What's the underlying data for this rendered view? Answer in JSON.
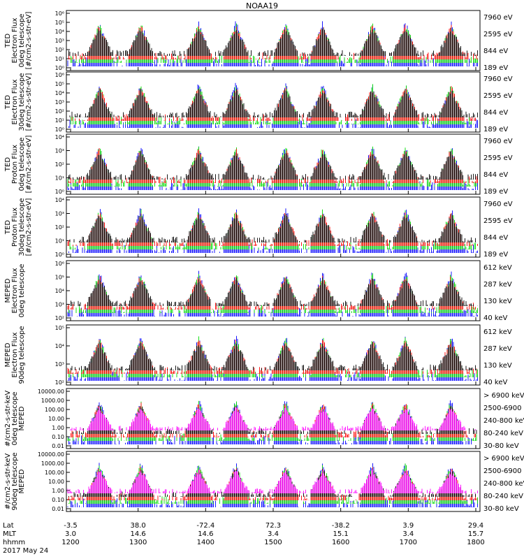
{
  "title": "NOAA19",
  "chart_data": [
    {
      "type": "scatter",
      "ylabel": [
        "TED",
        "Electron Flux",
        "0deg telescope",
        "[#/cm2-s-str-eV]"
      ],
      "ytick_labels": [
        "10⁰",
        "10¹",
        "10²",
        "10³",
        "10⁴",
        "10⁵",
        "10⁶"
      ],
      "yscale": "log",
      "ylim": [
        1,
        1000000
      ],
      "legend": [
        {
          "label": "7960 eV",
          "color": "#000000"
        },
        {
          "label": "2595 eV",
          "color": "#ff0000"
        },
        {
          "label": "844 eV",
          "color": "#00dd00"
        },
        {
          "label": "189 eV",
          "color": "#0000ff"
        }
      ]
    },
    {
      "type": "scatter",
      "ylabel": [
        "TED",
        "Electron Flux",
        "30deg telescope",
        "[#/cm2-s-str-eV]"
      ],
      "ytick_labels": [
        "10⁰",
        "10¹",
        "10²",
        "10³",
        "10⁴",
        "10⁵",
        "10⁶"
      ],
      "yscale": "log",
      "ylim": [
        1,
        1000000
      ],
      "legend": [
        {
          "label": "7960 eV",
          "color": "#000000"
        },
        {
          "label": "2595 eV",
          "color": "#ff0000"
        },
        {
          "label": "844 eV",
          "color": "#00dd00"
        },
        {
          "label": "189 eV",
          "color": "#0000ff"
        }
      ]
    },
    {
      "type": "scatter",
      "ylabel": [
        "TED",
        "Proton Flux",
        "0deg telescope",
        "[#/cm2-s-str-eV]"
      ],
      "ytick_labels": [
        "10⁰",
        "10¹",
        "10²",
        "10³",
        "10⁴"
      ],
      "yscale": "log",
      "ylim": [
        1,
        10000
      ],
      "legend": [
        {
          "label": "7960 eV",
          "color": "#000000"
        },
        {
          "label": "2595 eV",
          "color": "#ff0000"
        },
        {
          "label": "844 eV",
          "color": "#00dd00"
        },
        {
          "label": "189 eV",
          "color": "#0000ff"
        }
      ]
    },
    {
      "type": "scatter",
      "ylabel": [
        "TED",
        "Proton Flux",
        "30deg telescope",
        "[#/cm2-s-str-eV]"
      ],
      "ytick_labels": [
        "10⁰",
        "10¹",
        "10²",
        "10³",
        "10⁴"
      ],
      "yscale": "log",
      "ylim": [
        1,
        10000
      ],
      "legend": [
        {
          "label": "7960 eV",
          "color": "#000000"
        },
        {
          "label": "2595 eV",
          "color": "#ff0000"
        },
        {
          "label": "844 eV",
          "color": "#00dd00"
        },
        {
          "label": "189 eV",
          "color": "#0000ff"
        }
      ]
    },
    {
      "type": "scatter",
      "ylabel": [
        "MEPED",
        "Electron Flux",
        "0deg telescope",
        ""
      ],
      "ytick_labels": [
        "10²",
        "10³",
        "10⁴",
        "10⁵",
        "10⁶"
      ],
      "yscale": "log",
      "ylim": [
        100,
        1000000
      ],
      "legend": [
        {
          "label": "612 keV",
          "color": "#000000"
        },
        {
          "label": "287 keV",
          "color": "#ff0000"
        },
        {
          "label": "130 keV",
          "color": "#00dd00"
        },
        {
          "label": "40 keV",
          "color": "#0000ff"
        }
      ]
    },
    {
      "type": "scatter",
      "ylabel": [
        "MEPED",
        "Electron Flux",
        "90deg telescope",
        ""
      ],
      "ytick_labels": [
        "10²",
        "10³",
        "10⁴",
        "10⁵"
      ],
      "yscale": "log",
      "ylim": [
        100,
        100000
      ],
      "legend": [
        {
          "label": "612 keV",
          "color": "#000000"
        },
        {
          "label": "287 keV",
          "color": "#ff0000"
        },
        {
          "label": "130 keV",
          "color": "#00dd00"
        },
        {
          "label": "40 keV",
          "color": "#0000ff"
        }
      ]
    },
    {
      "type": "scatter",
      "ylabel": [
        "#/cm2-s-str-keV",
        "0deg telescope",
        "MEPED",
        ""
      ],
      "ytick_labels": [
        "0.01",
        "0.10",
        "1.00",
        "10.00",
        "100.00",
        "1000.00",
        "10000.00"
      ],
      "yscale": "log",
      "ylim": [
        0.01,
        10000
      ],
      "legend": [
        {
          "label": "> 6900 keV",
          "color": "#ff00ff"
        },
        {
          "label": "2500-6900",
          "color": "#000000"
        },
        {
          "label": "240-800 keV",
          "color": "#ff0000"
        },
        {
          "label": "80-240 keV",
          "color": "#00dd00"
        },
        {
          "label": "30-80 keV",
          "color": "#0000ff"
        }
      ]
    },
    {
      "type": "scatter",
      "ylabel": [
        "#/cm2-s-str-keV",
        "90deg telescope",
        "MEPED",
        ""
      ],
      "ytick_labels": [
        "0.01",
        "0.10",
        "1.00",
        "10.00",
        "100.00",
        "1000.00",
        "10000.00"
      ],
      "yscale": "log",
      "ylim": [
        0.01,
        10000
      ],
      "legend": [
        {
          "label": "> 6900 keV",
          "color": "#ff00ff"
        },
        {
          "label": "2500-6900",
          "color": "#000000"
        },
        {
          "label": "240-800 keV",
          "color": "#ff0000"
        },
        {
          "label": "80-240 keV",
          "color": "#00dd00"
        },
        {
          "label": "30-80 keV",
          "color": "#0000ff"
        }
      ]
    }
  ],
  "xaxis": {
    "row_labels": [
      "Lat",
      "MLT",
      "hhmm"
    ],
    "lat": [
      "-3.5",
      "38.0",
      "-72.4",
      "72.3",
      "-38.2",
      "3.9",
      "29.4"
    ],
    "mlt": [
      "3.0",
      "14.6",
      "14.6",
      "3.4",
      "15.1",
      "3.4",
      "15.7"
    ],
    "hhmm": [
      "1200",
      "1300",
      "1400",
      "1500",
      "1600",
      "1700",
      "1800"
    ],
    "date": "2017 May 24"
  },
  "colors": {
    "black": "#000000",
    "red": "#ff0000",
    "green": "#00dd00",
    "blue": "#0000ff",
    "magenta": "#ff00ff"
  }
}
